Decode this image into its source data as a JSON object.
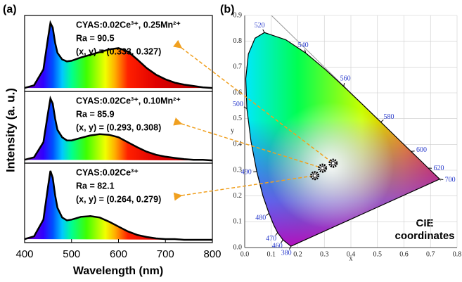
{
  "chart_data": [
    {
      "type": "area",
      "panel_label": "(a)",
      "xlabel": "Wavelength (nm)",
      "ylabel": "Intensity (a. u.)",
      "x": [
        400,
        420,
        440,
        450,
        455,
        460,
        465,
        470,
        480,
        490,
        500,
        520,
        540,
        560,
        580,
        600,
        620,
        640,
        660,
        680,
        700,
        720,
        740,
        760,
        780,
        800
      ],
      "xlim": [
        400,
        800
      ],
      "xticks": [
        400,
        500,
        600,
        700,
        800
      ],
      "ylim": [
        0,
        1.08
      ],
      "panels": [
        {
          "values": [
            0.02,
            0.06,
            0.3,
            0.78,
            1.0,
            0.93,
            0.7,
            0.55,
            0.45,
            0.42,
            0.43,
            0.48,
            0.52,
            0.56,
            0.6,
            0.62,
            0.57,
            0.45,
            0.32,
            0.22,
            0.15,
            0.1,
            0.07,
            0.05,
            0.03,
            0.02
          ],
          "annotations": [
            "CYAS:0.02Ce³⁺, 0.25Mn²⁺",
            "Ra = 90.5",
            "(x, y) = (0.333, 0.327)"
          ]
        },
        {
          "values": [
            0.02,
            0.06,
            0.3,
            0.78,
            1.0,
            0.92,
            0.68,
            0.5,
            0.38,
            0.33,
            0.33,
            0.37,
            0.41,
            0.43,
            0.42,
            0.38,
            0.3,
            0.22,
            0.15,
            0.1,
            0.07,
            0.05,
            0.03,
            0.02,
            0.02,
            0.01
          ],
          "annotations": [
            "CYAS:0.02Ce³⁺, 0.10Mn²⁺",
            "Ra = 85.9",
            "(x, y) = (0.293, 0.308)"
          ]
        },
        {
          "values": [
            0.02,
            0.06,
            0.3,
            0.78,
            1.0,
            0.9,
            0.65,
            0.47,
            0.33,
            0.29,
            0.3,
            0.34,
            0.35,
            0.33,
            0.27,
            0.2,
            0.13,
            0.08,
            0.05,
            0.03,
            0.02,
            0.02,
            0.01,
            0.01,
            0.01,
            0.01
          ],
          "annotations": [
            "CYAS:0.02Ce³⁺",
            "Ra = 82.1",
            "(x, y) = (0.264, 0.279)"
          ]
        }
      ]
    },
    {
      "type": "scatter",
      "panel_label": "(b)",
      "xlabel": "x",
      "ylabel": "y",
      "xlim": [
        0,
        0.8
      ],
      "xticks": [
        {
          "value": 0,
          "label": "0.0"
        },
        0.1,
        0.2,
        0.3,
        0.4,
        0.5,
        0.6,
        0.7,
        0.8
      ],
      "ylim": [
        0,
        0.9
      ],
      "yticks": [
        {
          "value": 0,
          "label": "0.0"
        },
        0.1,
        0.2,
        0.3,
        0.4,
        0.5,
        0.6,
        0.7,
        0.8,
        0.9
      ],
      "grid": true,
      "locus": {
        "x": [
          0.1741,
          0.144,
          0.1241,
          0.1096,
          0.0913,
          0.0687,
          0.0454,
          0.0235,
          0.0082,
          0.0039,
          0.0139,
          0.0389,
          0.0743,
          0.1547,
          0.2296,
          0.3016,
          0.3731,
          0.4441,
          0.5125,
          0.5752,
          0.627,
          0.6658,
          0.6915,
          0.7347
        ],
        "y": [
          0.005,
          0.0297,
          0.0578,
          0.0868,
          0.1327,
          0.2007,
          0.295,
          0.4127,
          0.5384,
          0.6548,
          0.7502,
          0.812,
          0.8338,
          0.8059,
          0.7543,
          0.6923,
          0.6245,
          0.5547,
          0.4866,
          0.4242,
          0.3725,
          0.334,
          0.3083,
          0.2653
        ],
        "labels": [
          380,
          460,
          470,
          null,
          480,
          null,
          490,
          null,
          500,
          null,
          null,
          null,
          520,
          null,
          540,
          null,
          560,
          null,
          580,
          null,
          600,
          null,
          620,
          700
        ]
      },
      "series": [
        {
          "color": "#000000",
          "x": [
            0.264,
            0.293,
            0.333
          ],
          "values": [
            0.279,
            0.308,
            0.327
          ]
        }
      ],
      "annotation_lines": [
        "CIE",
        "coordinates"
      ]
    }
  ]
}
